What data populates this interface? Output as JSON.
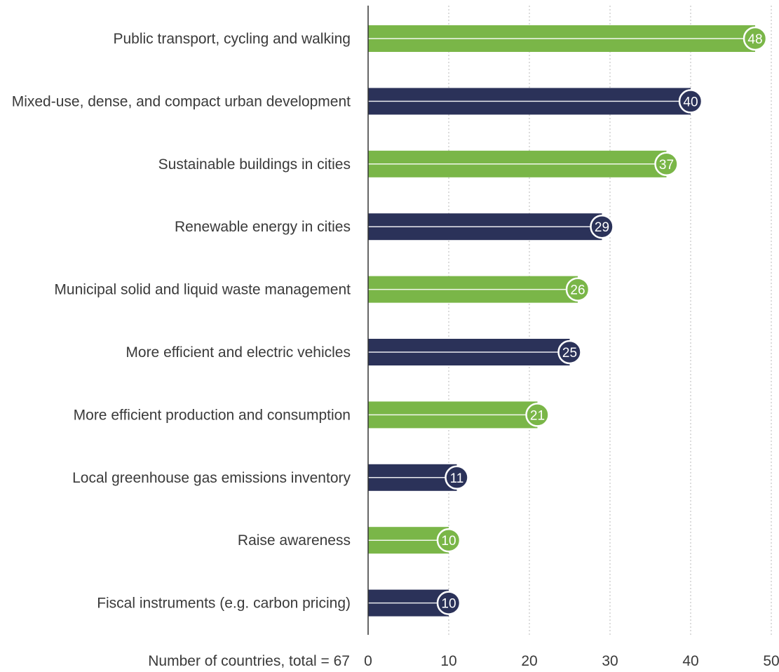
{
  "chart_data": {
    "type": "bar",
    "orientation": "horizontal",
    "categories": [
      "Public transport,  cycling and walking",
      "Mixed-use, dense, and compact urban development",
      "Sustainable buildings in cities",
      "Renewable energy in cities",
      "Municipal solid and liquid waste management",
      "More efficient and electric vehicles",
      "More efficient production and consumption",
      "Local greenhouse gas emissions inventory",
      "Raise awareness",
      "Fiscal instruments (e.g. carbon pricing)"
    ],
    "values": [
      48,
      40,
      37,
      29,
      26,
      25,
      21,
      11,
      10,
      10
    ],
    "xlabel": "Number of countries, total = 67",
    "ylabel": "",
    "title": "",
    "xlim": [
      0,
      50
    ],
    "xticks": [
      0,
      10,
      20,
      30,
      40,
      50
    ],
    "grid": "vertical-dotted",
    "bar_colors": [
      "#7ab648",
      "#2b3259"
    ]
  }
}
